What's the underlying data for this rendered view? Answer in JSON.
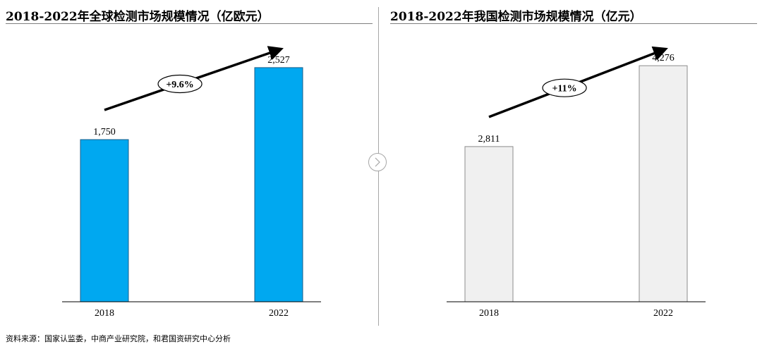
{
  "chart_data": [
    {
      "type": "bar",
      "title": "2018-2022年全球检测市场规模情况（亿欧元）",
      "categories": [
        "2018",
        "2022"
      ],
      "values": [
        1750,
        2527
      ],
      "value_labels": [
        "1,750",
        "2,527"
      ],
      "growth_label": "+9.6%",
      "ylim": [
        0,
        2800
      ],
      "grid": false,
      "bar_color": "#00a8f0",
      "bar_stroke": "#1a5e8a"
    },
    {
      "type": "bar",
      "title": "2018-2022年我国检测市场规模情况（亿元）",
      "categories": [
        "2018",
        "2022"
      ],
      "values": [
        2811,
        4276
      ],
      "value_labels": [
        "2,811",
        "4,276"
      ],
      "growth_label": "+11%",
      "ylim": [
        0,
        4700
      ],
      "grid": false,
      "bar_color": "#f0f0f0",
      "bar_stroke": "#8c8c8c"
    }
  ],
  "source": "资料来源：国家认监委，中商产业研究院，和君国资研究中心分析",
  "icons": {
    "divider": "chevron-right-icon"
  }
}
